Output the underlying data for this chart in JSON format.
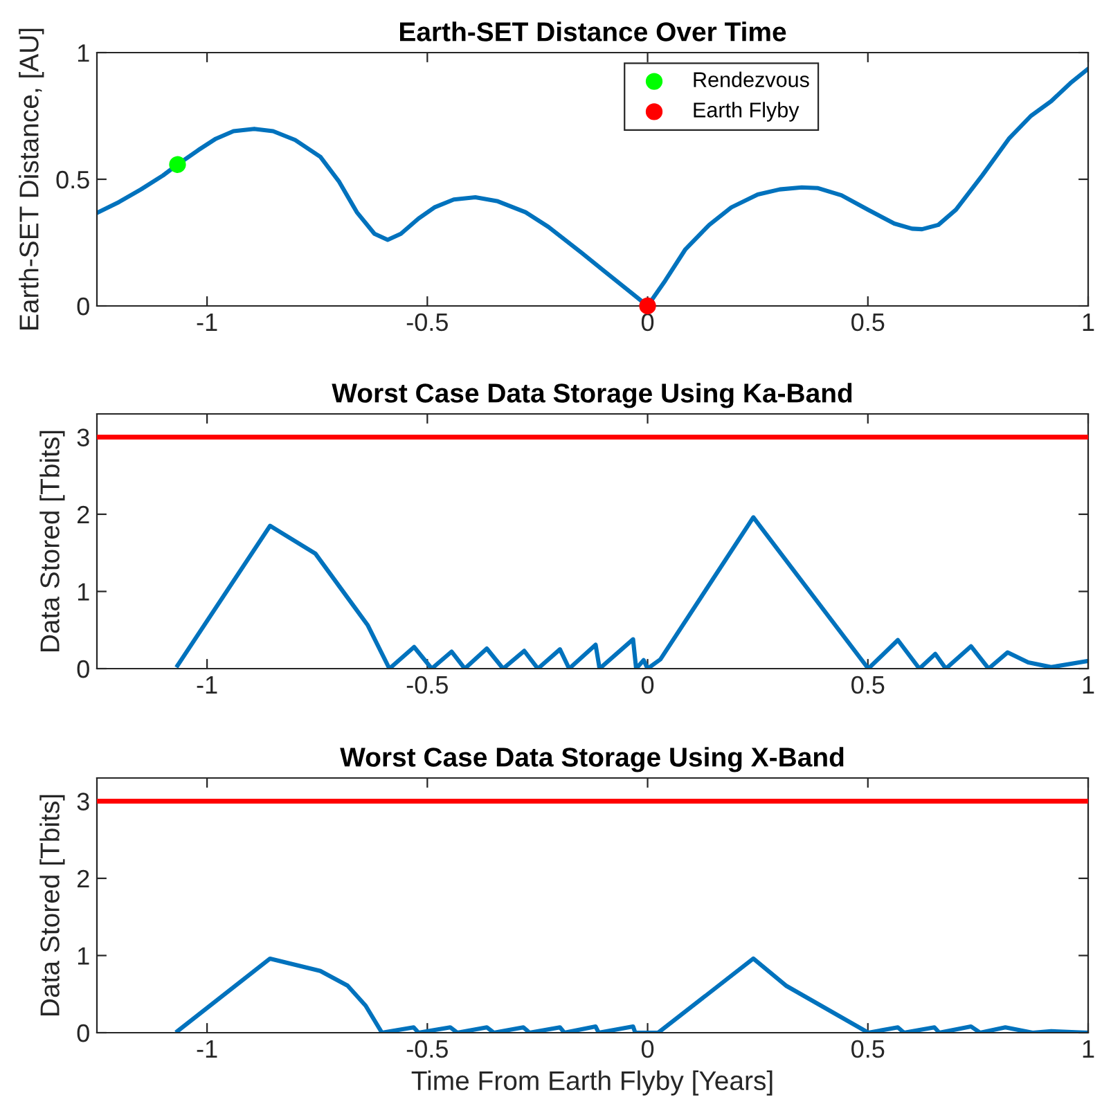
{
  "chart_data": [
    {
      "type": "line",
      "title": "Earth-SET Distance Over Time",
      "ylabel": "Earth-SET Distance, [AU]",
      "xlim": [
        -1.25,
        1
      ],
      "ylim": [
        0,
        1
      ],
      "xticks": [
        -1,
        -0.5,
        0,
        0.5,
        1
      ],
      "yticks": [
        0,
        0.5,
        1
      ],
      "legend": "top",
      "marker": "none",
      "line_style": "solid",
      "series": [
        {
          "color": "#0072bd",
          "x": [
            -1.25,
            -1.2,
            -1.15,
            -1.1,
            -1.067,
            -1.02,
            -0.98,
            -0.94,
            -0.893,
            -0.85,
            -0.8,
            -0.743,
            -0.7,
            -0.66,
            -0.62,
            -0.59,
            -0.56,
            -0.52,
            -0.484,
            -0.44,
            -0.391,
            -0.34,
            -0.277,
            -0.225,
            -0.15,
            -0.1,
            -0.05,
            0,
            0.04,
            0.086,
            0.14,
            0.19,
            0.25,
            0.3,
            0.35,
            0.387,
            0.44,
            0.501,
            0.56,
            0.6,
            0.623,
            0.66,
            0.7,
            0.76,
            0.82,
            0.87,
            0.916,
            0.96,
            1.0
          ],
          "values": [
            0.367,
            0.41,
            0.46,
            0.515,
            0.558,
            0.615,
            0.66,
            0.69,
            0.699,
            0.69,
            0.655,
            0.589,
            0.49,
            0.37,
            0.285,
            0.261,
            0.285,
            0.345,
            0.389,
            0.42,
            0.429,
            0.413,
            0.37,
            0.312,
            0.21,
            0.14,
            0.07,
            0,
            0.1,
            0.224,
            0.32,
            0.389,
            0.44,
            0.46,
            0.468,
            0.465,
            0.437,
            0.379,
            0.325,
            0.305,
            0.303,
            0.32,
            0.38,
            0.516,
            0.66,
            0.75,
            0.808,
            0.88,
            0.936
          ]
        },
        {
          "type": "scatter",
          "name": "Rendezvous",
          "color": "#00ff00",
          "marker": "circle",
          "x": [
            -1.067
          ],
          "values": [
            0.558
          ]
        },
        {
          "type": "scatter",
          "name": "Earth Flyby",
          "color": "#ff0000",
          "marker": "circle",
          "x": [
            0
          ],
          "values": [
            0
          ]
        }
      ]
    },
    {
      "type": "line",
      "title": "Worst Case Data Storage Using Ka-Band",
      "ylabel": "Data Stored [Tbits]",
      "xlim": [
        -1.25,
        1
      ],
      "ylim": [
        0,
        3.3
      ],
      "xticks": [
        -1,
        -0.5,
        0,
        0.5,
        1
      ],
      "yticks": [
        0,
        1,
        2,
        3
      ],
      "marker": "none",
      "line_style": "solid",
      "ref_lines": [
        {
          "axis": "y",
          "value": 3,
          "color": "#ff0000"
        }
      ],
      "series": [
        {
          "color": "#0072bd",
          "x": [
            -1.067,
            -0.857,
            -0.754,
            -0.635,
            -0.586,
            -0.53,
            -0.49,
            -0.445,
            -0.415,
            -0.365,
            -0.328,
            -0.28,
            -0.249,
            -0.199,
            -0.178,
            -0.118,
            -0.109,
            -0.033,
            -0.026,
            -0.009,
            0,
            0.029,
            0.24,
            0.501,
            0.568,
            0.617,
            0.653,
            0.677,
            0.734,
            0.774,
            0.817,
            0.864,
            0.916,
            1.0
          ],
          "values": [
            0.04,
            1.85,
            1.49,
            0.56,
            0,
            0.28,
            0,
            0.22,
            0,
            0.26,
            0,
            0.23,
            0,
            0.25,
            0,
            0.31,
            0,
            0.38,
            0,
            0.11,
            0,
            0.12,
            1.96,
            0,
            0.37,
            0,
            0.19,
            0,
            0.29,
            0,
            0.21,
            0.08,
            0.02,
            0.1
          ]
        }
      ]
    },
    {
      "type": "line",
      "title": "Worst Case Data Storage Using X-Band",
      "xlabel": "Time From Earth Flyby [Years]",
      "ylabel": "Data Stored [Tbits]",
      "xlim": [
        -1.25,
        1
      ],
      "ylim": [
        0,
        3.3
      ],
      "xticks": [
        -1,
        -0.5,
        0,
        0.5,
        1
      ],
      "yticks": [
        0,
        1,
        2,
        3
      ],
      "marker": "none",
      "line_style": "solid",
      "ref_lines": [
        {
          "axis": "y",
          "value": 3,
          "color": "#ff0000"
        }
      ],
      "series": [
        {
          "color": "#0072bd",
          "x": [
            -1.067,
            -0.857,
            -0.743,
            -0.681,
            -0.64,
            -0.603,
            -0.531,
            -0.52,
            -0.448,
            -0.432,
            -0.365,
            -0.349,
            -0.282,
            -0.268,
            -0.199,
            -0.189,
            -0.118,
            -0.111,
            -0.033,
            -0.028,
            0,
            0.024,
            0.24,
            0.314,
            0.501,
            0.568,
            0.582,
            0.651,
            0.662,
            0.734,
            0.755,
            0.812,
            0.874,
            0.916,
            1.0
          ],
          "values": [
            0.02,
            0.96,
            0.8,
            0.61,
            0.35,
            0,
            0.07,
            0,
            0.07,
            0,
            0.07,
            0,
            0.07,
            0,
            0.07,
            0,
            0.08,
            0,
            0.08,
            0,
            0,
            0,
            0.96,
            0.61,
            0,
            0.07,
            0,
            0.07,
            0,
            0.08,
            0,
            0.07,
            0,
            0.02,
            0
          ]
        }
      ]
    }
  ]
}
